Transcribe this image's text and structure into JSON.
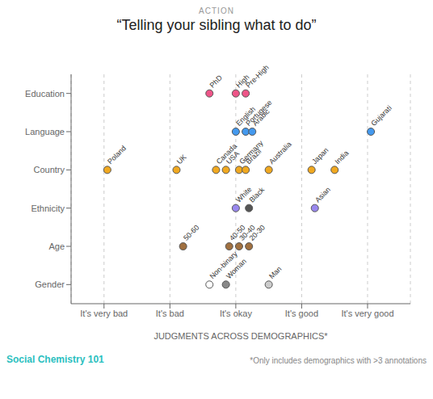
{
  "chart_data": {
    "type": "scatter",
    "title": "“Telling your sibling what to do”",
    "subtitle": "ACTION",
    "x_label": "JUDGMENTS ACROSS DEMOGRAPHICS*",
    "annotations": [
      "Social Chemistry 101",
      "*Only includes demographics with >3 annotations"
    ],
    "categories": [
      "Gender",
      "Age",
      "Ethnicity",
      "Country",
      "Language",
      "Education"
    ],
    "xlim": [
      0.5,
      5.65
    ],
    "xticks": [
      {
        "value": 1,
        "label": "It's very bad"
      },
      {
        "value": 2,
        "label": "It's bad"
      },
      {
        "value": 3,
        "label": "It's okay"
      },
      {
        "value": 4,
        "label": "It's good"
      },
      {
        "value": 5,
        "label": "It's very good"
      }
    ],
    "grid": true,
    "points": [
      {
        "category": "Gender",
        "x": 2.6,
        "label": "Non-binary",
        "color": "#ffffff"
      },
      {
        "category": "Gender",
        "x": 2.85,
        "label": "Woman",
        "color": "#888888"
      },
      {
        "category": "Gender",
        "x": 3.5,
        "label": "Man",
        "color": "#cccccc"
      },
      {
        "category": "Age",
        "x": 2.2,
        "label": "50-60",
        "color": "#a07040"
      },
      {
        "category": "Age",
        "x": 2.9,
        "label": "40-50",
        "color": "#a07040"
      },
      {
        "category": "Age",
        "x": 3.05,
        "label": "30-40",
        "color": "#a07040"
      },
      {
        "category": "Age",
        "x": 3.2,
        "label": "20-30",
        "color": "#a07040"
      },
      {
        "category": "Ethnicity",
        "x": 3.0,
        "label": "White",
        "color": "#9988ee"
      },
      {
        "category": "Ethnicity",
        "x": 3.2,
        "label": "Black",
        "color": "#555555"
      },
      {
        "category": "Ethnicity",
        "x": 4.2,
        "label": "Asian",
        "color": "#9988ee"
      },
      {
        "category": "Country",
        "x": 1.05,
        "label": "Poland",
        "color": "#f0a820"
      },
      {
        "category": "Country",
        "x": 2.1,
        "label": "UK",
        "color": "#f0a820"
      },
      {
        "category": "Country",
        "x": 2.7,
        "label": "Canada",
        "color": "#f0a820"
      },
      {
        "category": "Country",
        "x": 2.85,
        "label": "USA",
        "color": "#f0a820"
      },
      {
        "category": "Country",
        "x": 3.05,
        "label": "Germany",
        "color": "#f0a820"
      },
      {
        "category": "Country",
        "x": 3.15,
        "label": "Brazil",
        "color": "#f0a820"
      },
      {
        "category": "Country",
        "x": 3.5,
        "label": "Australia",
        "color": "#f0a820"
      },
      {
        "category": "Country",
        "x": 4.15,
        "label": "Japan",
        "color": "#f0a820"
      },
      {
        "category": "Country",
        "x": 4.5,
        "label": "India",
        "color": "#f0a820"
      },
      {
        "category": "Language",
        "x": 3.0,
        "label": "English",
        "color": "#4499ee"
      },
      {
        "category": "Language",
        "x": 3.15,
        "label": "Portugese",
        "color": "#4499ee"
      },
      {
        "category": "Language",
        "x": 3.25,
        "label": "Arabic",
        "color": "#4499ee"
      },
      {
        "category": "Language",
        "x": 5.05,
        "label": "Gujarati",
        "color": "#4499ee"
      },
      {
        "category": "Education",
        "x": 2.6,
        "label": "PhD",
        "color": "#ee5588"
      },
      {
        "category": "Education",
        "x": 3.0,
        "label": "High",
        "color": "#ee5588"
      },
      {
        "category": "Education",
        "x": 3.15,
        "label": "Pre-High",
        "color": "#ee5588"
      }
    ]
  }
}
